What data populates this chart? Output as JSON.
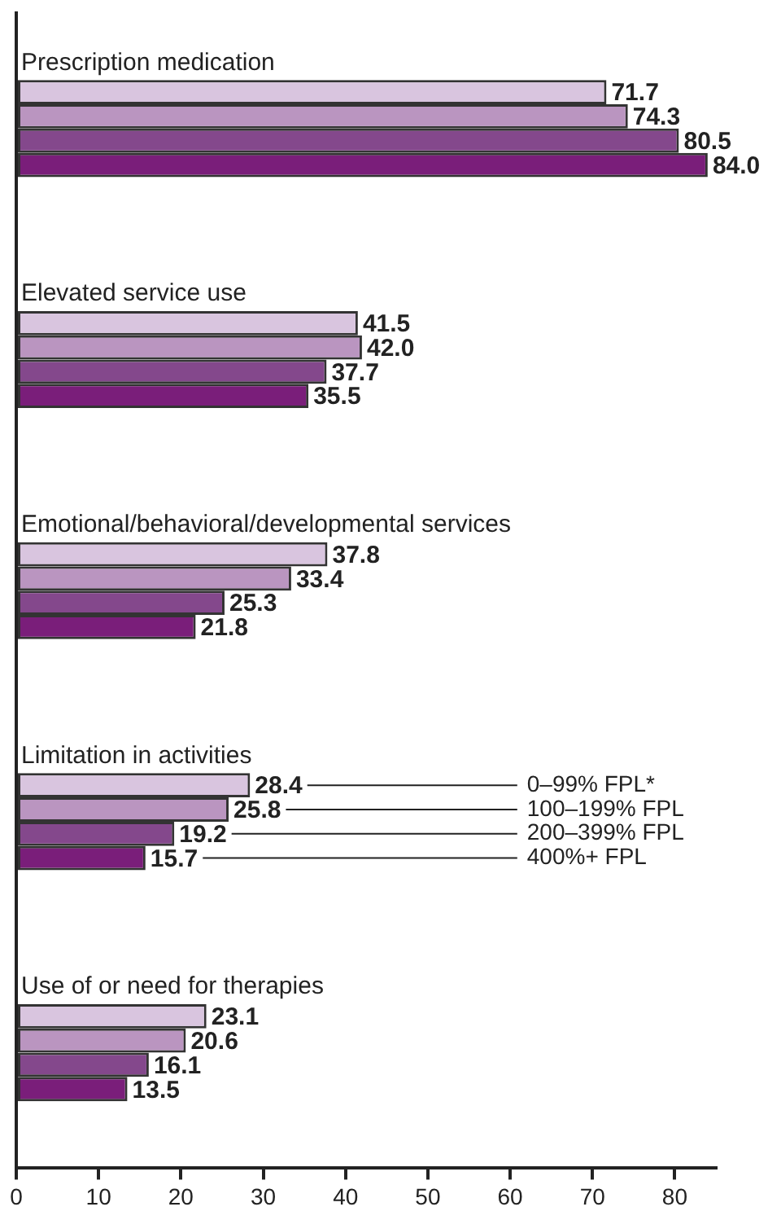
{
  "chart_data": {
    "type": "bar",
    "orientation": "horizontal",
    "categories": [
      "Prescription medication",
      "Elevated service use",
      "Emotional/behavioral/developmental services",
      "Limitation in activities",
      "Use of or need for therapies"
    ],
    "series": [
      {
        "name": "0–99% FPL*",
        "color": "#d9c5df",
        "values": [
          71.7,
          41.5,
          37.8,
          28.4,
          23.1
        ],
        "value_labels": [
          "71.7",
          "41.5",
          "37.8",
          "28.4",
          "23.1"
        ]
      },
      {
        "name": "100–199% FPL",
        "color": "#ba95c0",
        "values": [
          74.3,
          42.0,
          33.4,
          25.8,
          20.6
        ],
        "value_labels": [
          "74.3",
          "42.0",
          "33.4",
          "25.8",
          "20.6"
        ]
      },
      {
        "name": "200–399% FPL",
        "color": "#84488c",
        "values": [
          80.5,
          37.7,
          25.3,
          19.2,
          16.1
        ],
        "value_labels": [
          "80.5",
          "37.7",
          "25.3",
          "19.2",
          "16.1"
        ]
      },
      {
        "name": "400%+ FPL",
        "color": "#7a1e7a",
        "values": [
          84.0,
          35.5,
          21.8,
          15.7,
          13.5
        ],
        "value_labels": [
          "84.0",
          "35.5",
          "21.8",
          "15.7",
          "13.5"
        ]
      }
    ],
    "xlim": [
      0,
      85
    ],
    "xticks": [
      0,
      10,
      20,
      30,
      40,
      50,
      60,
      70,
      80
    ],
    "legend": "right",
    "grid": false
  }
}
